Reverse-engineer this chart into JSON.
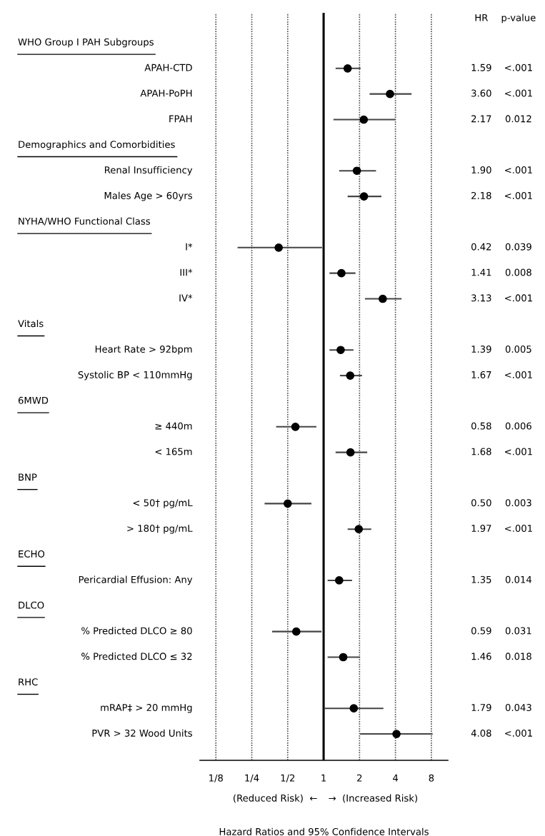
{
  "chart_data": {
    "type": "scatter",
    "orientation": "horizontal",
    "log": "x",
    "categories": [
      null,
      "APAH-CTD",
      "APAH-PoPH",
      "FPAH",
      null,
      "Renal Insufficiency",
      "Males Age > 60yrs",
      null,
      "I*",
      "III*",
      "IV*",
      null,
      "Heart Rate > 92bpm",
      "Systolic BP < 110mmHg",
      null,
      "≥ 440m",
      "< 165m",
      null,
      "< 50† pg/mL",
      "> 180† pg/mL",
      null,
      "Pericardial Effusion: Any",
      null,
      "% Predicted DLCO ≥ 80",
      "% Predicted DLCO ≤ 32",
      null,
      "mRAP‡ > 20 mmHg",
      "PVR > 32 Wood Units"
    ],
    "values": [
      null,
      1.59,
      3.6,
      2.17,
      null,
      1.9,
      2.18,
      null,
      0.42,
      1.41,
      3.13,
      null,
      1.39,
      1.67,
      null,
      0.58,
      1.68,
      null,
      0.5,
      1.97,
      null,
      1.35,
      null,
      0.59,
      1.46,
      null,
      1.79,
      4.08
    ],
    "errors": [
      null,
      [
        1.26,
        2.04
      ],
      [
        2.43,
        5.46
      ],
      [
        1.21,
        4.0
      ],
      null,
      [
        1.35,
        2.75
      ],
      [
        1.59,
        3.05
      ],
      null,
      [
        0.19,
        0.97
      ],
      [
        1.12,
        1.85
      ],
      [
        2.22,
        4.5
      ],
      null,
      [
        1.12,
        1.78
      ],
      [
        1.37,
        2.1
      ],
      null,
      [
        0.4,
        0.87
      ],
      [
        1.26,
        2.32
      ],
      null,
      [
        0.32,
        0.79
      ],
      [
        1.59,
        2.51
      ],
      null,
      [
        1.08,
        1.73
      ],
      null,
      [
        0.37,
        0.96
      ],
      [
        1.08,
        2.02
      ],
      null,
      [
        1.02,
        3.17
      ],
      [
        2.02,
        8.2
      ]
    ],
    "value_labels": [
      null,
      "1.59",
      "3.60",
      "2.17",
      null,
      "1.90",
      "2.18",
      null,
      "0.42",
      "1.41",
      "3.13",
      null,
      "1.39",
      "1.67",
      null,
      "0.58",
      "1.68",
      null,
      "0.50",
      "1.97",
      null,
      "1.35",
      null,
      "0.59",
      "1.46",
      null,
      "1.79",
      "4.08"
    ],
    "color": "#000000",
    "marker": "circle",
    "xlim": [
      0.092,
      11
    ],
    "xticks": [
      {
        "value": 0.125,
        "label": "1/8"
      },
      {
        "value": 0.25,
        "label": "1/4"
      },
      {
        "value": 0.5,
        "label": "1/2"
      },
      1,
      2,
      4,
      8
    ],
    "grid": "x",
    "ref_lines": [
      {
        "axis": "x",
        "value": 1,
        "color": "#000000",
        "line_style": "solid"
      }
    ],
    "xlabel": "Hazard Ratios and 95% Confidence Intervals",
    "annotations": [
      "HR",
      "p-value",
      "(Reduced Risk)  ←",
      "→  (Increased Risk)",
      "WHO Group I PAH Subgroups",
      "Demographics and Comorbidities",
      "NYHA/WHO Functional Class",
      "Vitals",
      "6MWD",
      "BNP",
      "ECHO",
      "DLCO",
      "RHC",
      "<.001",
      "<.001",
      "0.012",
      "<.001",
      "<.001",
      "0.039",
      "0.008",
      "<.001",
      "0.005",
      "<.001",
      "0.006",
      "<.001",
      "0.003",
      "<.001",
      "0.014",
      "0.031",
      "0.018",
      "0.043",
      "<.001"
    ]
  }
}
